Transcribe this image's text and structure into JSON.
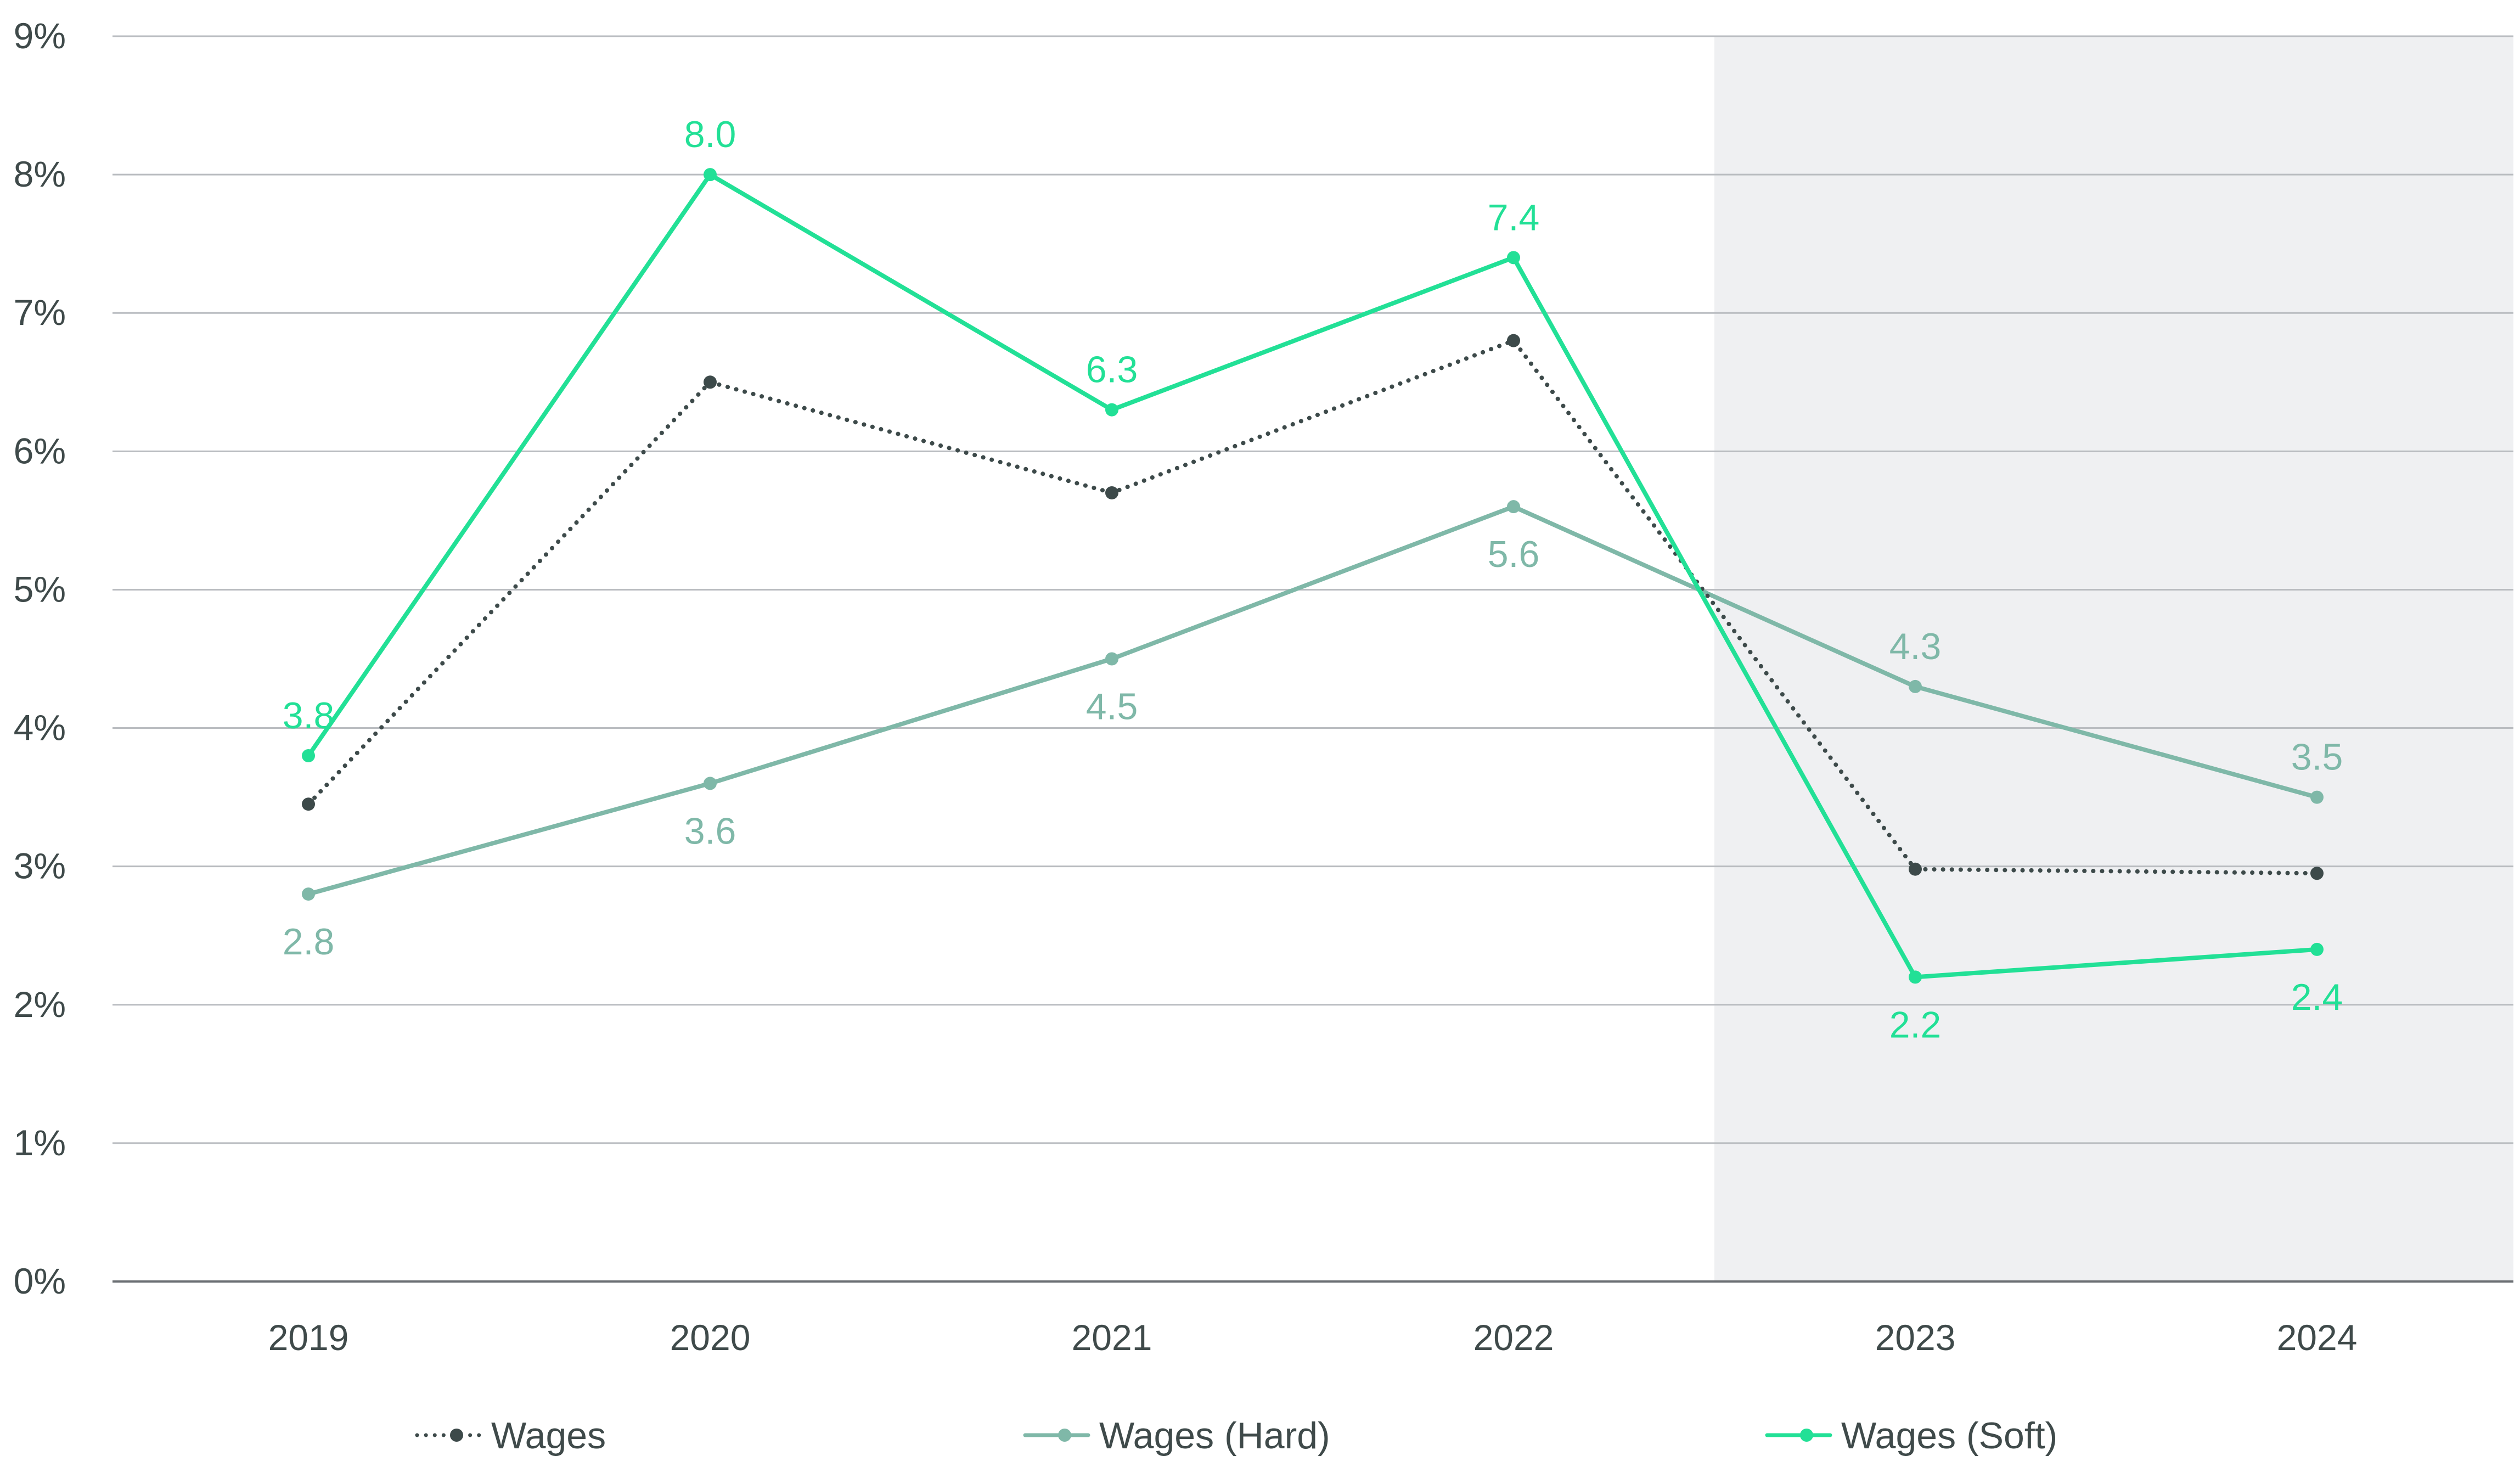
{
  "chart_data": {
    "type": "line",
    "title": "",
    "xlabel": "",
    "ylabel": "",
    "categories": [
      "2019",
      "2020",
      "2021",
      "2022",
      "2023",
      "2024"
    ],
    "ylim": [
      0,
      9
    ],
    "y_ticks": [
      "0%",
      "1%",
      "2%",
      "3%",
      "4%",
      "5%",
      "6%",
      "7%",
      "8%",
      "9%"
    ],
    "grid": true,
    "shaded_region": {
      "from": "2022.5",
      "to": "2024.5",
      "color": "#eff0f2"
    },
    "legend_position": "bottom",
    "series": [
      {
        "name": "Wages",
        "values": [
          3.45,
          6.5,
          5.7,
          6.8,
          2.98,
          2.95
        ],
        "labels": [
          "",
          "",
          "",
          "",
          "",
          ""
        ],
        "color": "#3d4a4a",
        "style": "dotted"
      },
      {
        "name": "Wages (Hard)",
        "values": [
          2.8,
          3.6,
          4.5,
          5.6,
          4.3,
          3.5
        ],
        "labels": [
          "2.8",
          "3.6",
          "4.5",
          "5.6",
          "4.3",
          "3.5"
        ],
        "label_positions": [
          "below",
          "below",
          "below",
          "below",
          "above",
          "above"
        ],
        "color": "#7fb8a8",
        "style": "solid"
      },
      {
        "name": "Wages (Soft)",
        "values": [
          3.8,
          8.0,
          6.3,
          7.4,
          2.2,
          2.4
        ],
        "labels": [
          "3.8",
          "8.0",
          "6.3",
          "7.4",
          "2.2",
          "2.4"
        ],
        "label_positions": [
          "above",
          "above",
          "above",
          "above",
          "below",
          "below"
        ],
        "color": "#22e096",
        "style": "solid"
      }
    ]
  },
  "colors": {
    "gridline": "#b9bcc0",
    "axis": "#6b6f73",
    "tick_text": "#3f4a4a",
    "shade": "#eff0f2"
  }
}
